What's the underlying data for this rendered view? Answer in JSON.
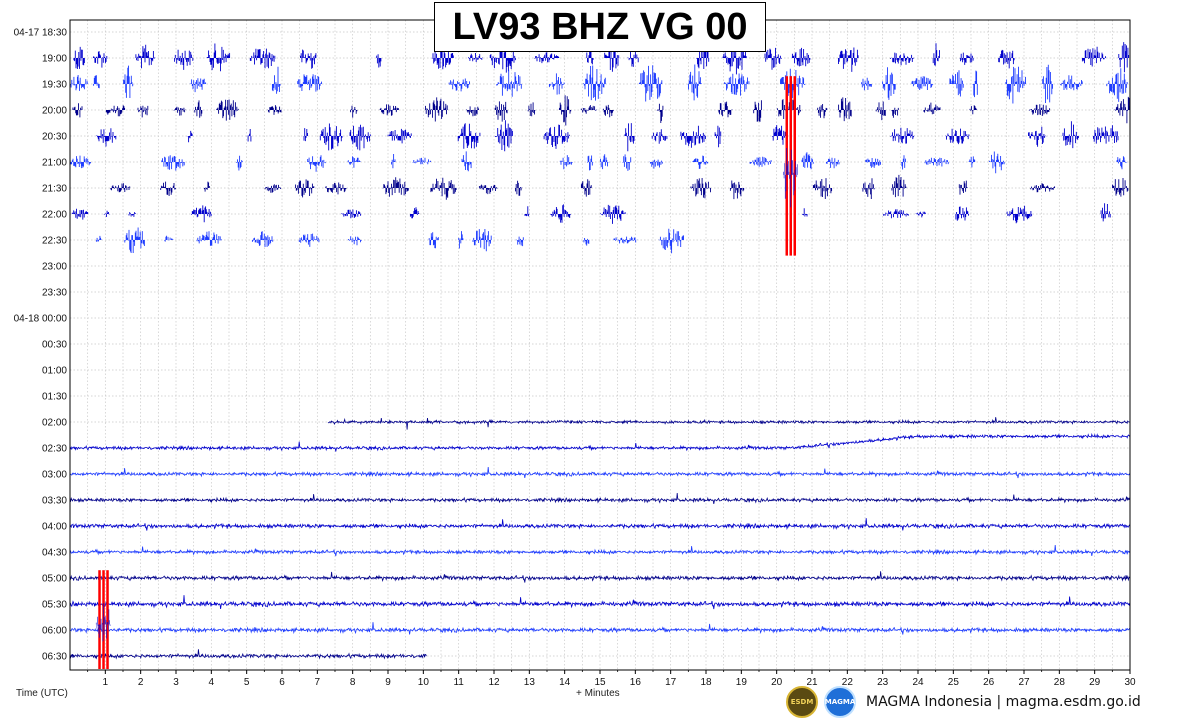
{
  "chart_data": {
    "type": "line",
    "title": "LV93 BHZ VG 00",
    "xlabel": "+ Minutes",
    "ylabel": "Time (UTC)",
    "xlim": [
      0,
      30
    ],
    "x_ticks": [
      "1",
      "2",
      "3",
      "4",
      "5",
      "6",
      "7",
      "8",
      "9",
      "10",
      "11",
      "12",
      "13",
      "14",
      "15",
      "16",
      "17",
      "18",
      "19",
      "20",
      "21",
      "22",
      "23",
      "24",
      "25",
      "26",
      "27",
      "28",
      "29",
      "30"
    ],
    "row_labels": [
      "04-17 18:30",
      "19:00",
      "19:30",
      "20:00",
      "20:30",
      "21:00",
      "21:30",
      "22:00",
      "22:30",
      "23:00",
      "23:30",
      "04-18 00:00",
      "00:30",
      "01:00",
      "01:30",
      "02:00",
      "02:30",
      "03:00",
      "03:30",
      "04:00",
      "04:30",
      "05:00",
      "05:30",
      "06:00",
      "06:30"
    ],
    "grid": true,
    "series_colors": [
      "#00008b",
      "#0000cd",
      "#1e3cff"
    ],
    "event_marker_color": "#ff0000",
    "traces": [
      {
        "row": 0,
        "type": "none"
      },
      {
        "row": 1,
        "type": "bursts",
        "start": 0,
        "end": 30,
        "density": 0.55,
        "amplitude": 0.55
      },
      {
        "row": 2,
        "type": "bursts",
        "start": 0,
        "end": 30,
        "density": 0.5,
        "amplitude": 0.7
      },
      {
        "row": 3,
        "type": "bursts",
        "start": 0,
        "end": 30,
        "density": 0.45,
        "amplitude": 0.5
      },
      {
        "row": 4,
        "type": "bursts",
        "start": 0,
        "end": 30,
        "density": 0.5,
        "amplitude": 0.5
      },
      {
        "row": 5,
        "type": "bursts",
        "start": 0,
        "end": 30,
        "density": 0.35,
        "amplitude": 0.4
      },
      {
        "row": 6,
        "type": "bursts",
        "start": 0,
        "end": 30,
        "density": 0.3,
        "amplitude": 0.45
      },
      {
        "row": 7,
        "type": "bursts",
        "start": 0,
        "end": 30,
        "density": 0.3,
        "amplitude": 0.35
      },
      {
        "row": 8,
        "type": "bursts",
        "start": 0.6,
        "end": 17.5,
        "density": 0.35,
        "amplitude": 0.45
      },
      {
        "row": 15,
        "type": "continuous",
        "start": 7.3,
        "end": 30,
        "amplitude": 0.18
      },
      {
        "row": 16,
        "type": "continuous",
        "start": 0,
        "end": 30,
        "amplitude": 0.2,
        "drift": true
      },
      {
        "row": 17,
        "type": "continuous",
        "start": 0,
        "end": 30,
        "amplitude": 0.22
      },
      {
        "row": 18,
        "type": "continuous",
        "start": 0,
        "end": 30,
        "amplitude": 0.22
      },
      {
        "row": 19,
        "type": "continuous",
        "start": 0,
        "end": 30,
        "amplitude": 0.25
      },
      {
        "row": 20,
        "type": "continuous",
        "start": 0,
        "end": 30,
        "amplitude": 0.22
      },
      {
        "row": 21,
        "type": "continuous",
        "start": 0,
        "end": 30,
        "amplitude": 0.25
      },
      {
        "row": 22,
        "type": "continuous",
        "start": 0,
        "end": 30,
        "amplitude": 0.28
      },
      {
        "row": 23,
        "type": "continuous",
        "start": 0,
        "end": 30,
        "amplitude": 0.25
      },
      {
        "row": 24,
        "type": "continuous",
        "start": 0,
        "end": 10.1,
        "amplitude": 0.25
      }
    ],
    "event_markers": [
      {
        "x_min": 20.25,
        "row_from": 1.7,
        "row_to": 8.6
      },
      {
        "x_min": 0.8,
        "row_from": 20.7,
        "row_to": 24.5
      }
    ]
  },
  "footer": {
    "logo_esdm_text": "ESDM",
    "logo_magma_text": "MAGMA",
    "text": "MAGMA Indonesia | magma.esdm.go.id"
  }
}
